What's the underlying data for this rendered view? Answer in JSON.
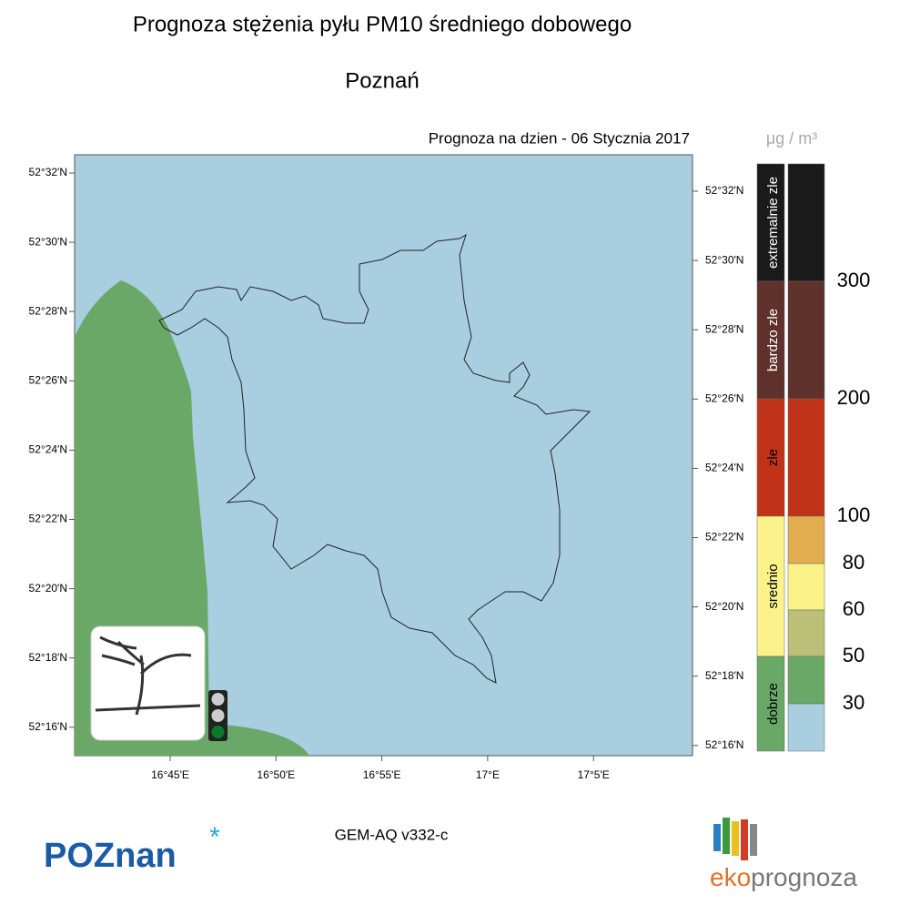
{
  "header": {
    "title": "Prognoza stężenia pyłu PM10 średniego dobowego",
    "city": "Poznań",
    "date": "Prognoza na dzien -  06 Stycznia 2017"
  },
  "map": {
    "lat_labels_left": [
      "52°32'N",
      "52°30'N",
      "52°28'N",
      "52°26'N",
      "52°24'N",
      "52°22'N",
      "52°20'N",
      "52°18'N",
      "52°16'N"
    ],
    "lat_labels_right": [
      "52°32'N",
      "52°30'N",
      "52°28'N",
      "52°26'N",
      "52°24'N",
      "52°22'N",
      "52°20'N",
      "52°18'N",
      "52°16'N"
    ],
    "lon_labels": [
      "16°45'E",
      "16°50'E",
      "16°55'E",
      "17°E",
      "17°5'E"
    ]
  },
  "legend": {
    "unit": "μg / m³",
    "categories": [
      "extremalnie zle",
      "bardzo zle",
      "zle",
      "srednio",
      "dobrze"
    ],
    "thresholds": [
      "300",
      "200",
      "100",
      "80",
      "60",
      "50",
      "30"
    ]
  },
  "footer": {
    "model": "GEM-AQ v332-c",
    "logo_left": "POZnan",
    "logo_right": [
      "eko",
      "prognoza"
    ]
  }
}
